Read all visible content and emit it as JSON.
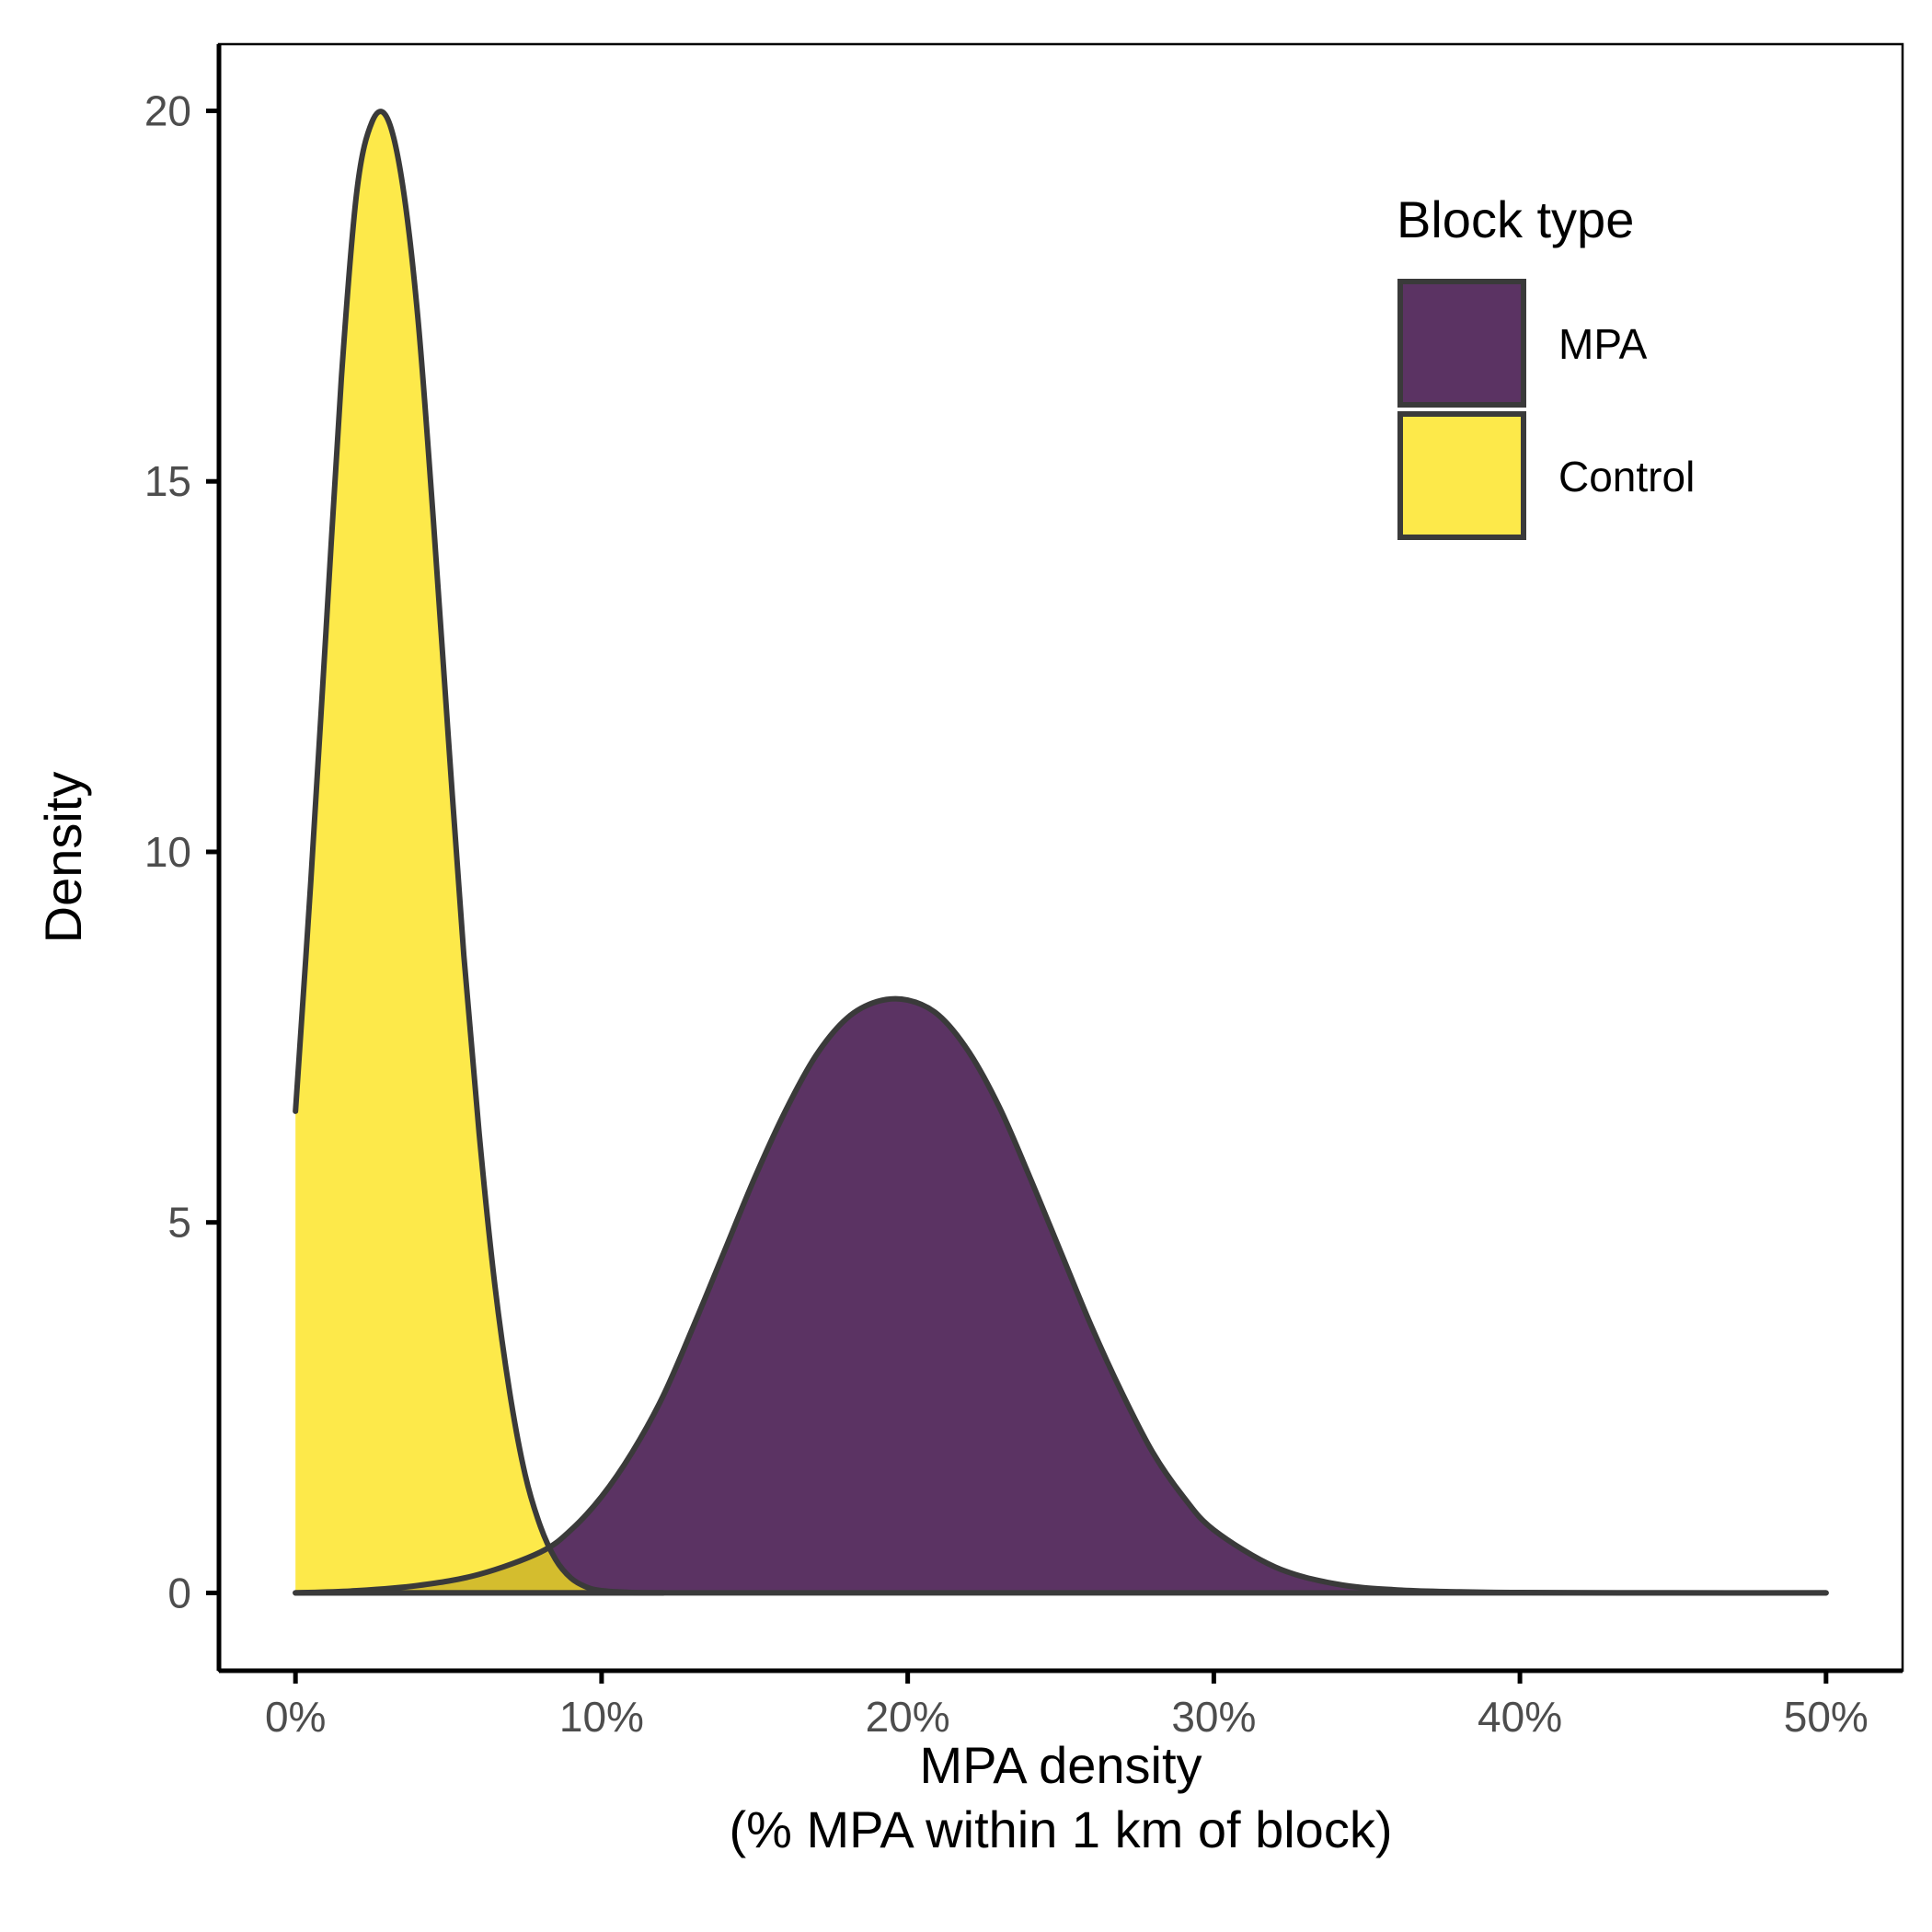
{
  "chart_data": {
    "type": "area",
    "xlabel": "MPA density",
    "xlabel_line2": "(% MPA within 1 km of block)",
    "ylabel": "Density",
    "xlim": [
      -0.025,
      0.525
    ],
    "ylim": [
      -1.05,
      20.9
    ],
    "x_ticks": [
      0,
      0.1,
      0.2,
      0.3,
      0.4,
      0.5
    ],
    "x_tick_labels": [
      "0%",
      "10%",
      "20%",
      "30%",
      "40%",
      "50%"
    ],
    "y_ticks": [
      0,
      5,
      10,
      15,
      20
    ],
    "y_tick_labels": [
      "0",
      "5",
      "10",
      "15",
      "20"
    ],
    "grid": false,
    "legend": {
      "title": "Block type",
      "placement": "top-right"
    },
    "series": [
      {
        "name": "MPA",
        "color": "#5b3363",
        "x": [
          0,
          0.02,
          0.04,
          0.06,
          0.08,
          0.09,
          0.1,
          0.11,
          0.12,
          0.13,
          0.14,
          0.15,
          0.16,
          0.17,
          0.18,
          0.19,
          0.2,
          0.21,
          0.22,
          0.23,
          0.24,
          0.25,
          0.26,
          0.27,
          0.28,
          0.29,
          0.3,
          0.32,
          0.34,
          0.36,
          0.38,
          0.4,
          0.45,
          0.5
        ],
        "y": [
          0.0,
          0.03,
          0.1,
          0.25,
          0.55,
          0.85,
          1.3,
          1.9,
          2.65,
          3.6,
          4.6,
          5.6,
          6.5,
          7.25,
          7.75,
          7.98,
          8.0,
          7.8,
          7.3,
          6.55,
          5.6,
          4.6,
          3.6,
          2.7,
          1.9,
          1.3,
          0.85,
          0.35,
          0.12,
          0.04,
          0.015,
          0.005,
          0.0,
          0.0
        ]
      },
      {
        "name": "Control",
        "color": "#fde94a",
        "x": [
          0,
          0.005,
          0.01,
          0.015,
          0.02,
          0.025,
          0.03,
          0.035,
          0.04,
          0.045,
          0.05,
          0.055,
          0.06,
          0.065,
          0.07,
          0.075,
          0.08,
          0.085,
          0.09,
          0.095,
          0.1,
          0.11,
          0.12
        ],
        "y": [
          6.5,
          9.6,
          13.0,
          16.4,
          18.9,
          19.85,
          19.9,
          19.0,
          17.2,
          14.5,
          11.5,
          8.6,
          6.2,
          4.2,
          2.7,
          1.6,
          0.9,
          0.45,
          0.2,
          0.08,
          0.03,
          0.005,
          0.0
        ]
      }
    ],
    "overlap_color": "#d4bd2e",
    "outline_color": "#3a3a3a"
  }
}
